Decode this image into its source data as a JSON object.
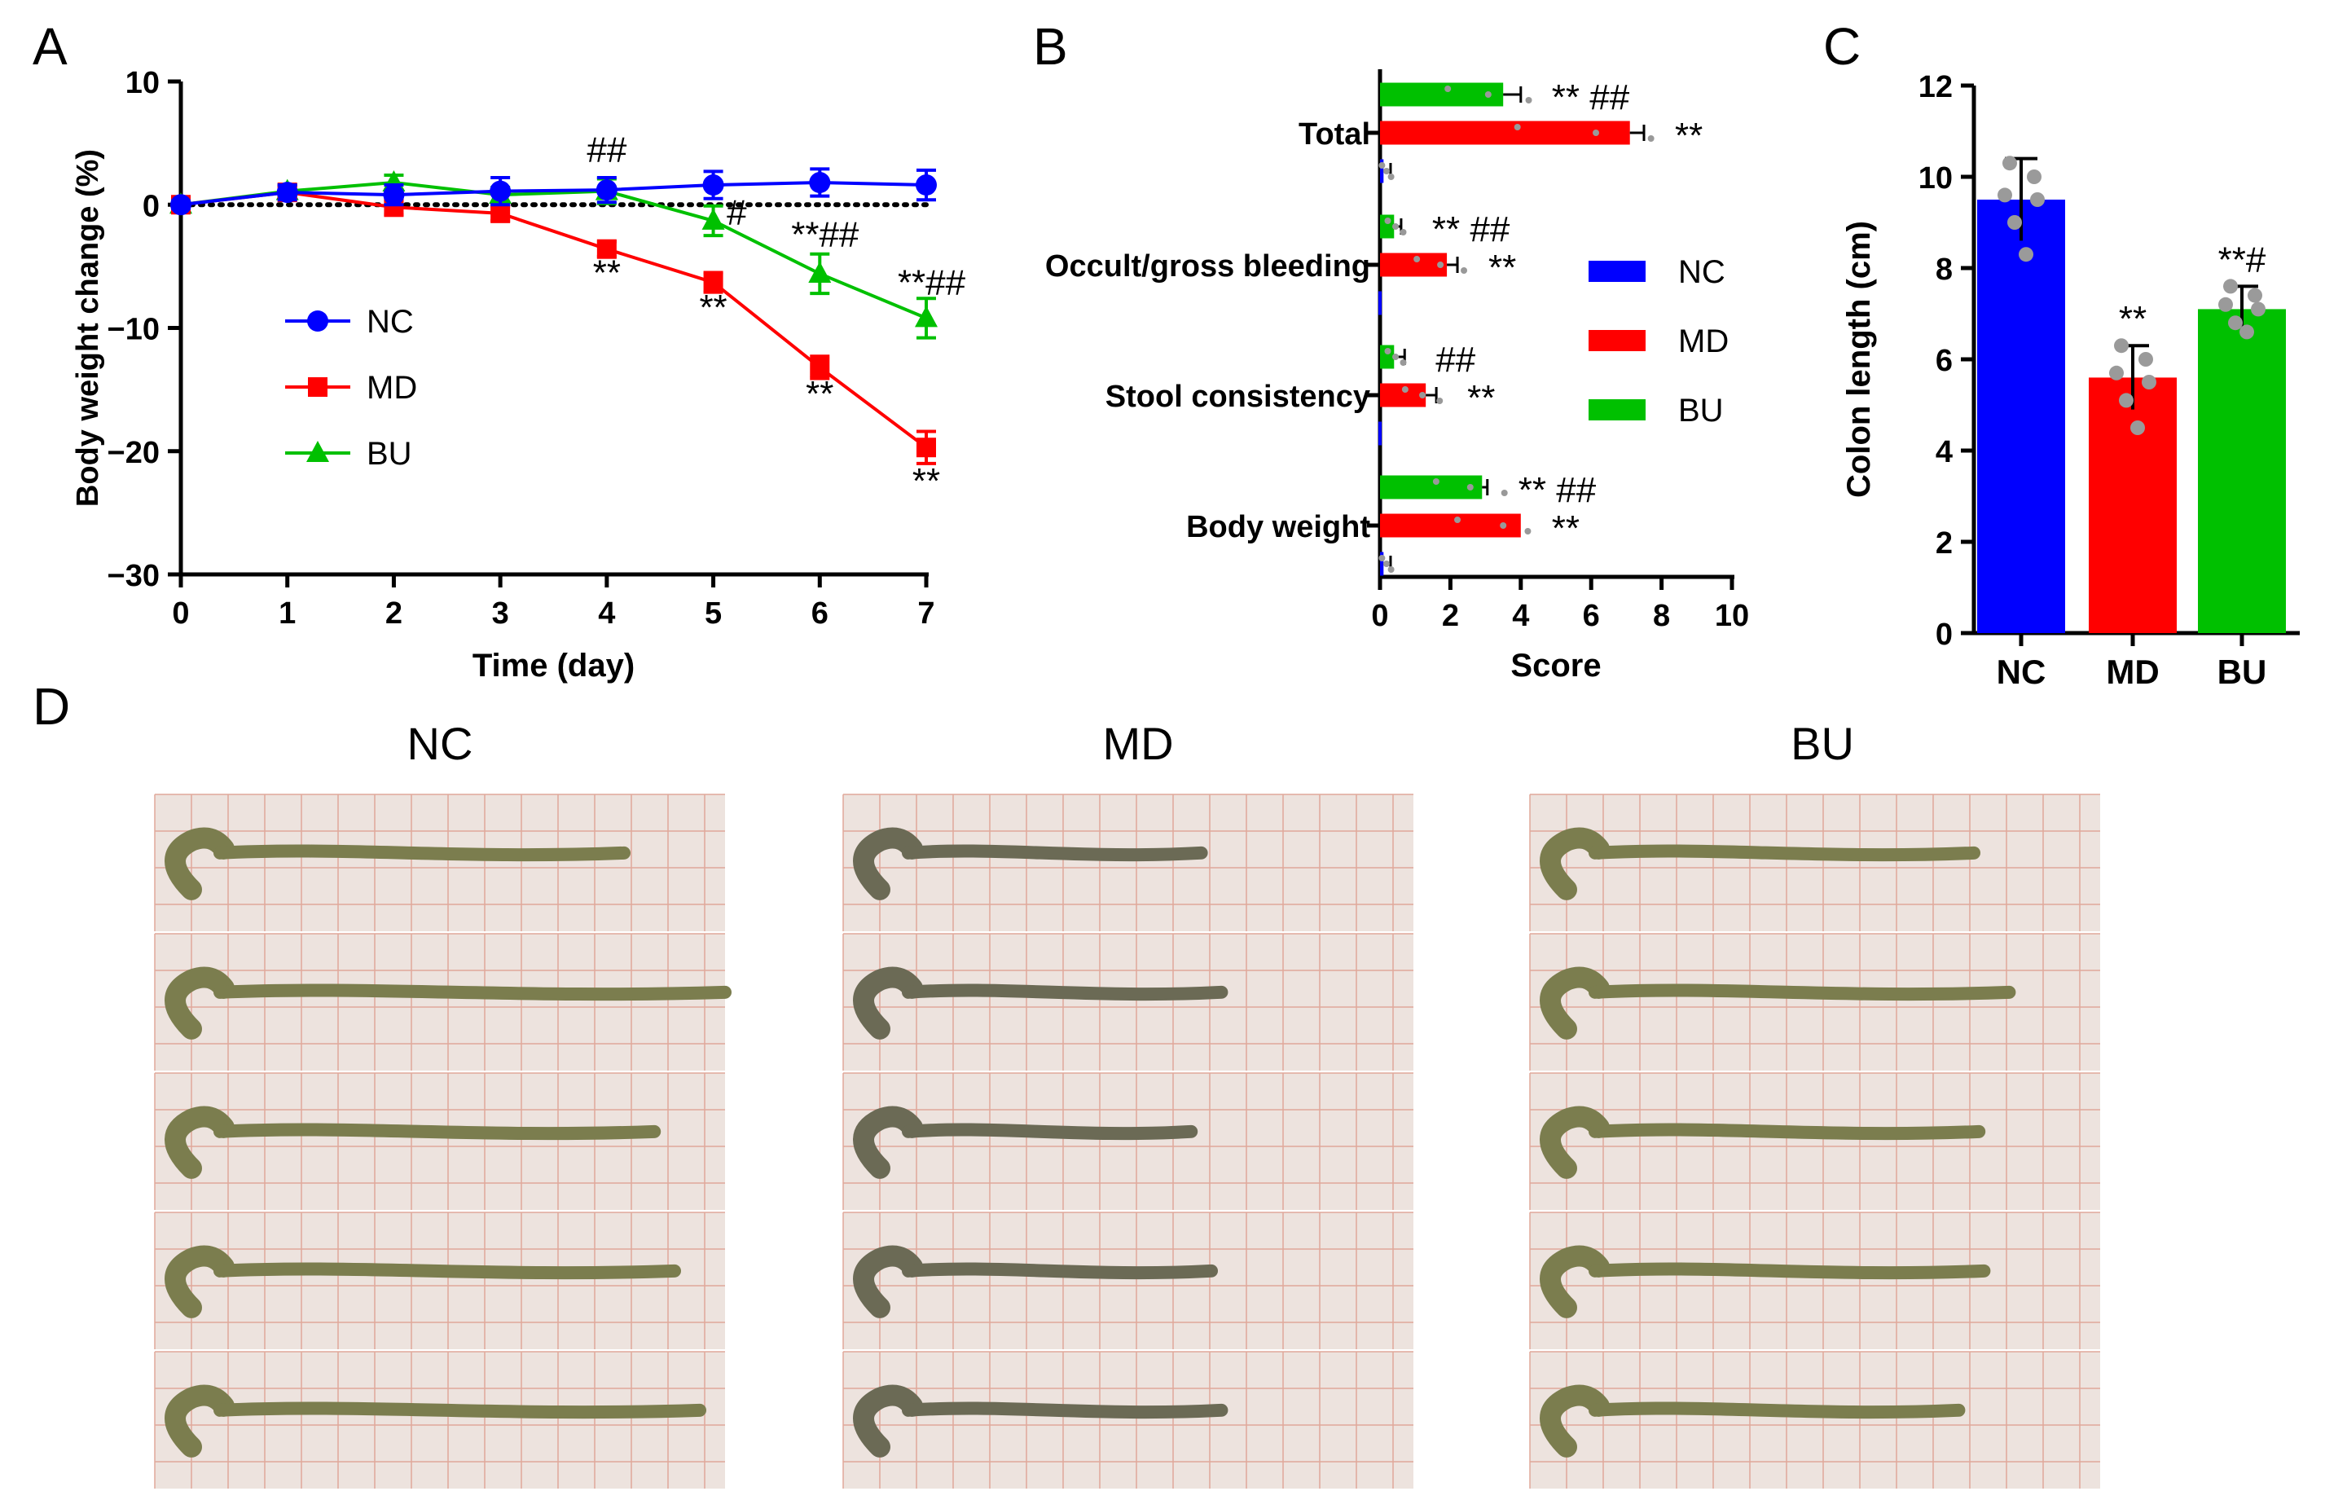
{
  "figure": {
    "panel_labels": [
      "A",
      "B",
      "C",
      "D"
    ]
  },
  "chart_data": [
    {
      "id": "A",
      "type": "line",
      "xlabel": "Time (day)",
      "ylabel": "Body weight change (%)",
      "xlim": [
        0,
        7
      ],
      "ylim": [
        -30,
        10
      ],
      "xticks": [
        0,
        1,
        2,
        3,
        4,
        5,
        6,
        7
      ],
      "yticks": [
        10,
        0,
        -10,
        -20,
        -30
      ],
      "ytick_labels": [
        "10",
        "0",
        "−10",
        "−20",
        "−30"
      ],
      "reference_line": 0,
      "legend_position": "center-left",
      "series": [
        {
          "name": "NC",
          "color": "#0000ff",
          "marker": "circle",
          "x": [
            0,
            1,
            2,
            3,
            4,
            5,
            6,
            7
          ],
          "y": [
            0,
            1.0,
            0.8,
            1.1,
            1.2,
            1.6,
            1.8,
            1.6
          ],
          "err": [
            0.3,
            0.6,
            0.8,
            1.1,
            1.0,
            1.1,
            1.1,
            1.2
          ]
        },
        {
          "name": "MD",
          "color": "#ff0000",
          "marker": "square",
          "x": [
            0,
            1,
            2,
            3,
            4,
            5,
            6,
            7
          ],
          "y": [
            0,
            1.0,
            -0.2,
            -0.7,
            -3.6,
            -6.3,
            -13.2,
            -19.7
          ],
          "err": [
            0.3,
            0.5,
            0.6,
            0.6,
            0.6,
            0.8,
            0.9,
            1.3
          ]
        },
        {
          "name": "BU",
          "color": "#00c000",
          "marker": "triangle",
          "x": [
            0,
            1,
            2,
            3,
            4,
            5,
            6,
            7
          ],
          "y": [
            0,
            1.1,
            1.8,
            0.8,
            1.1,
            -1.3,
            -5.6,
            -9.2
          ],
          "err": [
            0.3,
            0.5,
            0.6,
            0.6,
            1.0,
            1.2,
            1.6,
            1.6
          ]
        }
      ],
      "annotations": [
        {
          "text": "##",
          "x": 4,
          "y": 3.5
        },
        {
          "text": "**",
          "x": 4,
          "y": -6.5
        },
        {
          "text": "**",
          "x": 5,
          "y": -9.3
        },
        {
          "text": "#",
          "x": 5.22,
          "y": -1.6
        },
        {
          "text": "**##",
          "x": 6.05,
          "y": -3.4
        },
        {
          "text": "**",
          "x": 6,
          "y": -16.3
        },
        {
          "text": "**##",
          "x": 7.05,
          "y": -7.3
        },
        {
          "text": "**",
          "x": 7,
          "y": -23.4
        }
      ]
    },
    {
      "id": "B",
      "type": "bar",
      "orientation": "horizontal",
      "xlabel": "Score",
      "xlim": [
        0,
        10
      ],
      "xticks": [
        0,
        2,
        4,
        6,
        8,
        10
      ],
      "categories": [
        "Total",
        "Occult/gross bleeding",
        "Stool consistency",
        "Body weight"
      ],
      "legend_position": "right",
      "series": [
        {
          "name": "BU",
          "color": "#00c000",
          "values": [
            3.5,
            0.4,
            0.4,
            2.9
          ],
          "err": [
            0.5,
            0.2,
            0.3,
            0.15
          ]
        },
        {
          "name": "MD",
          "color": "#ff0000",
          "values": [
            7.1,
            1.9,
            1.3,
            4.0
          ],
          "err": [
            0.4,
            0.3,
            0.3,
            0.0
          ]
        },
        {
          "name": "NC",
          "color": "#0000ff",
          "values": [
            0.1,
            0.0,
            0.0,
            0.1
          ],
          "err": [
            0.2,
            0.0,
            0.0,
            0.2
          ]
        }
      ],
      "legend_order": [
        "NC",
        "MD",
        "BU"
      ],
      "annotations": [
        {
          "category": "Total",
          "series": "BU",
          "text": "** ##"
        },
        {
          "category": "Total",
          "series": "MD",
          "text": "**"
        },
        {
          "category": "Occult/gross bleeding",
          "series": "BU",
          "text": "** ##"
        },
        {
          "category": "Occult/gross bleeding",
          "series": "MD",
          "text": "**"
        },
        {
          "category": "Stool consistency",
          "series": "BU",
          "text": "##"
        },
        {
          "category": "Stool consistency",
          "series": "MD",
          "text": "**"
        },
        {
          "category": "Body weight",
          "series": "BU",
          "text": "** ##"
        },
        {
          "category": "Body weight",
          "series": "MD",
          "text": "**"
        }
      ]
    },
    {
      "id": "C",
      "type": "bar",
      "ylabel": "Colon length (cm)",
      "ylim": [
        0,
        12
      ],
      "yticks": [
        0,
        2,
        4,
        6,
        8,
        10,
        12
      ],
      "categories": [
        "NC",
        "MD",
        "BU"
      ],
      "values": [
        9.5,
        5.6,
        7.1
      ],
      "err": [
        0.9,
        0.7,
        0.5
      ],
      "colors": [
        "#0000ff",
        "#ff0000",
        "#00c000"
      ],
      "points": [
        [
          10.3,
          10.0,
          9.6,
          9.5,
          9.0,
          8.3
        ],
        [
          6.3,
          6.0,
          5.7,
          5.5,
          5.1,
          4.5
        ],
        [
          7.6,
          7.4,
          7.2,
          7.1,
          6.8,
          6.6
        ]
      ],
      "annotations": [
        {
          "category": "MD",
          "text": "**"
        },
        {
          "category": "BU",
          "text": "**#"
        }
      ]
    }
  ],
  "panel_d": {
    "groups": [
      {
        "label": "NC",
        "specimens": 5
      },
      {
        "label": "MD",
        "specimens": 5
      },
      {
        "label": "BU",
        "specimens": 5
      }
    ]
  }
}
